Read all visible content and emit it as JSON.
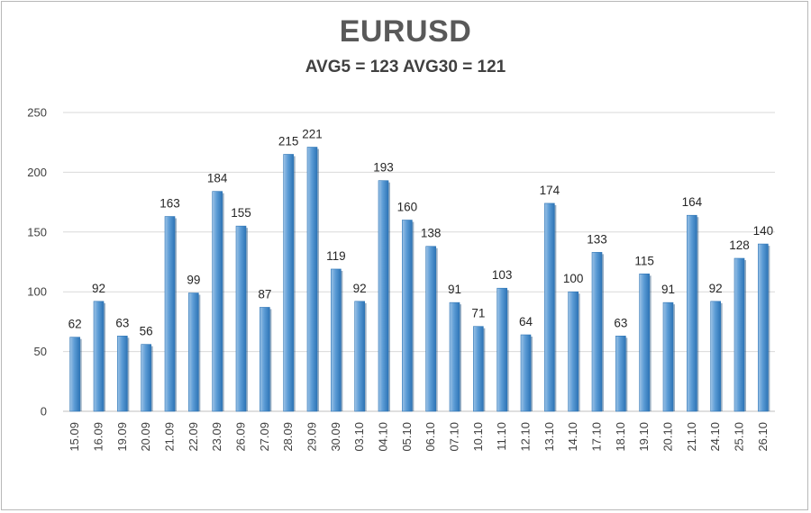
{
  "chart_data": {
    "type": "bar",
    "title": "EURUSD",
    "subtitle": "AVG5 = 123 AVG30 = 121",
    "categories": [
      "15.09",
      "16.09",
      "19.09",
      "20.09",
      "21.09",
      "22.09",
      "23.09",
      "26.09",
      "27.09",
      "28.09",
      "29.09",
      "30.09",
      "03.10",
      "04.10",
      "05.10",
      "06.10",
      "07.10",
      "10.10",
      "11.10",
      "12.10",
      "13.10",
      "14.10",
      "17.10",
      "18.10",
      "19.10",
      "20.10",
      "21.10",
      "24.10",
      "25.10",
      "26.10"
    ],
    "values": [
      62,
      92,
      63,
      56,
      163,
      99,
      184,
      155,
      87,
      215,
      221,
      119,
      92,
      193,
      160,
      138,
      91,
      71,
      103,
      64,
      174,
      100,
      133,
      63,
      115,
      91,
      164,
      92,
      128,
      140
    ],
    "ylim": [
      0,
      250
    ],
    "yticks": [
      0,
      50,
      100,
      150,
      200,
      250
    ],
    "grid": true,
    "xlabel": "",
    "ylabel": "",
    "colors": {
      "bar": "#5b9bd5",
      "bar_light": "#9dc3e6",
      "bar_dark": "#2e75b6",
      "grid": "#d9d9d9"
    }
  }
}
